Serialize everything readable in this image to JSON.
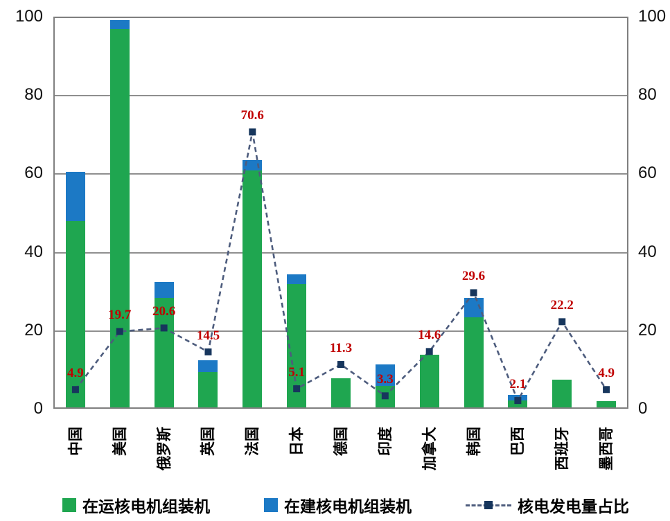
{
  "chart_data": {
    "type": "bar",
    "subtype": "stacked-bars-with-dashed-line-overlay",
    "categories": [
      "中国",
      "美国",
      "俄罗斯",
      "英国",
      "法国",
      "日本",
      "德国",
      "印度",
      "加拿大",
      "韩国",
      "巴西",
      "西班牙",
      "墨西哥"
    ],
    "series": [
      {
        "name": "在运核电机组装机",
        "type": "bar",
        "stack": "units",
        "color": "#1fa650",
        "values": [
          47.5,
          96.5,
          28,
          9,
          60.5,
          31.5,
          7.5,
          5.5,
          13.5,
          23,
          1.8,
          7,
          1.6
        ]
      },
      {
        "name": "在建核电机组装机",
        "type": "bar",
        "stack": "units",
        "color": "#1c79c5",
        "values": [
          12.5,
          2.3,
          4,
          3,
          2.5,
          2.5,
          0,
          5.5,
          0,
          5,
          1.3,
          0,
          0
        ]
      },
      {
        "name": "核电发电量占比",
        "type": "line",
        "line_style": "dashed",
        "color": "#4d5c7d",
        "marker": "square",
        "marker_color": "#17365d",
        "values": [
          4.9,
          19.7,
          20.6,
          14.5,
          70.6,
          5.1,
          11.3,
          3.3,
          14.6,
          29.6,
          2.1,
          22.2,
          4.9
        ]
      }
    ],
    "point_labels": [
      "4.9",
      "19.7",
      "20.6",
      "14.5",
      "70.6",
      "5.1",
      "11.3",
      "3.3",
      "14.6",
      "29.6",
      "2.1",
      "22.2",
      "4.9"
    ],
    "point_label_color": "#c00000",
    "ylim": [
      0,
      100
    ],
    "yticks": [
      0,
      20,
      40,
      60,
      80,
      100
    ],
    "dual_y_axis": true,
    "grid": true,
    "grid_color": "#8f8f8f",
    "legend_position": "bottom"
  }
}
